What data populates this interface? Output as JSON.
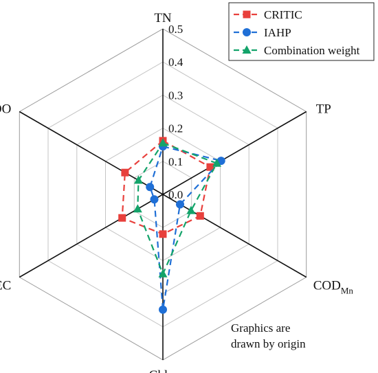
{
  "chart_data": {
    "type": "radar",
    "axes": [
      {
        "label": "TN",
        "sub": ""
      },
      {
        "label": "TP",
        "sub": ""
      },
      {
        "label": "COD",
        "sub": "Mn"
      },
      {
        "label": "Chl.a",
        "sub": ""
      },
      {
        "label": "EC",
        "sub": ""
      },
      {
        "label": "DO",
        "sub": ""
      }
    ],
    "r_range": [
      0,
      0.5
    ],
    "ticks": [
      "0.0",
      "0.1",
      "0.2",
      "0.3",
      "0.4",
      "0.5"
    ],
    "tick_values": [
      0,
      0.1,
      0.2,
      0.3,
      0.4,
      0.5
    ],
    "grid": true,
    "legend_position": "top-right",
    "series": [
      {
        "name": "CRITIC",
        "color": "#e8403c",
        "marker": "square",
        "values": [
          0.162,
          0.165,
          0.13,
          0.12,
          0.142,
          0.132
        ]
      },
      {
        "name": "IAHP",
        "color": "#1f6fd6",
        "marker": "circle",
        "values": [
          0.145,
          0.203,
          0.06,
          0.348,
          0.03,
          0.045
        ]
      },
      {
        "name": "Combination weight",
        "color": "#13a36a",
        "marker": "triangle",
        "values": [
          0.155,
          0.188,
          0.098,
          0.24,
          0.088,
          0.085
        ]
      }
    ],
    "annotation": [
      "Graphics are",
      "drawn by origin"
    ]
  }
}
